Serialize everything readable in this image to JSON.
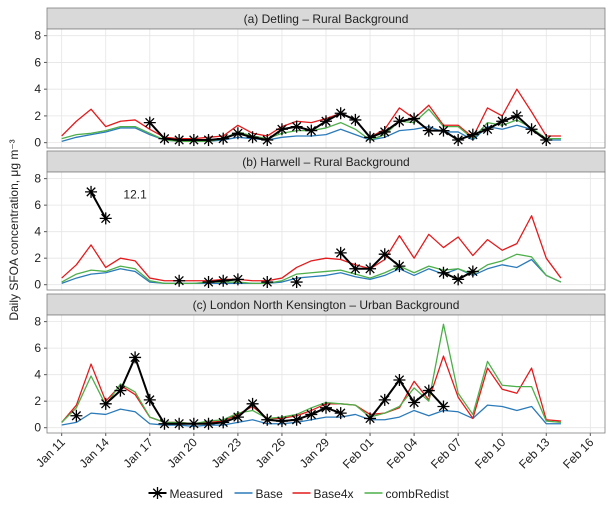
{
  "ylabel": "Daily SFOA concentration, μg m⁻³",
  "chart_data": [
    {
      "type": "line",
      "title": "(a) Detling – Rural Background",
      "x": [
        "Jan 11",
        "Jan 12",
        "Jan 13",
        "Jan 14",
        "Jan 15",
        "Jan 16",
        "Jan 17",
        "Jan 18",
        "Jan 19",
        "Jan 20",
        "Jan 21",
        "Jan 22",
        "Jan 23",
        "Jan 24",
        "Jan 25",
        "Jan 26",
        "Jan 27",
        "Jan 28",
        "Jan 29",
        "Jan 30",
        "Jan 31",
        "Feb 01",
        "Feb 02",
        "Feb 03",
        "Feb 04",
        "Feb 05",
        "Feb 06",
        "Feb 07",
        "Feb 08",
        "Feb 09",
        "Feb 10",
        "Feb 11",
        "Feb 12",
        "Feb 13",
        "Feb 14"
      ],
      "xlim": [
        "Jan 10",
        "Feb 17"
      ],
      "xticks": [
        "Jan 11",
        "Jan 14",
        "Jan 17",
        "Jan 20",
        "Jan 23",
        "Jan 26",
        "Jan 29",
        "Feb 01",
        "Feb 04",
        "Feb 07",
        "Feb 10",
        "Feb 13",
        "Feb 16"
      ],
      "ylim": [
        -0.4,
        8.5
      ],
      "yticks": [
        0,
        2,
        4,
        6,
        8
      ],
      "grid": true,
      "series": [
        {
          "name": "Base",
          "color": "#2b7bba",
          "values": [
            0.1,
            0.4,
            0.6,
            0.8,
            1.1,
            1.1,
            0.6,
            0.2,
            0.1,
            0.1,
            0.1,
            0.2,
            0.4,
            0.3,
            0.2,
            0.4,
            0.5,
            0.5,
            0.6,
            1.0,
            0.6,
            0.2,
            0.4,
            0.9,
            1.0,
            1.2,
            0.8,
            0.8,
            0.2,
            1.2,
            1.0,
            1.3,
            1.0,
            0.2,
            0.2
          ]
        },
        {
          "name": "Base4x",
          "color": "#e41a1c",
          "values": [
            0.5,
            1.6,
            2.5,
            1.2,
            1.6,
            1.7,
            1.0,
            0.4,
            0.3,
            0.3,
            0.4,
            0.5,
            1.3,
            0.7,
            0.5,
            1.2,
            1.6,
            1.5,
            1.8,
            2.2,
            1.7,
            0.4,
            1.0,
            2.6,
            1.8,
            2.8,
            1.3,
            1.3,
            0.4,
            2.6,
            2.0,
            4.0,
            2.3,
            0.5,
            0.5
          ]
        },
        {
          "name": "combRedist",
          "color": "#4daf4a",
          "values": [
            0.3,
            0.6,
            0.7,
            0.9,
            1.2,
            1.2,
            0.7,
            0.2,
            0.1,
            0.1,
            0.1,
            0.3,
            0.8,
            0.5,
            0.3,
            0.7,
            0.9,
            0.9,
            1.1,
            1.5,
            1.0,
            0.2,
            0.6,
            1.6,
            1.5,
            2.5,
            1.2,
            1.2,
            0.3,
            1.5,
            1.3,
            1.7,
            1.1,
            0.3,
            0.3
          ]
        },
        {
          "name": "Measured",
          "color": "#000000",
          "values": [
            null,
            null,
            null,
            null,
            null,
            null,
            1.5,
            0.3,
            0.2,
            0.2,
            0.2,
            0.3,
            0.7,
            0.4,
            0.2,
            1.0,
            1.2,
            0.9,
            1.6,
            2.2,
            1.7,
            0.4,
            0.8,
            1.6,
            1.8,
            0.9,
            0.9,
            0.2,
            0.6,
            1.0,
            1.6,
            2.0,
            1.0,
            0.2,
            null
          ]
        }
      ]
    },
    {
      "type": "line",
      "title": "(b) Harwell – Rural Background",
      "x": [
        "Jan 11",
        "Jan 12",
        "Jan 13",
        "Jan 14",
        "Jan 15",
        "Jan 16",
        "Jan 17",
        "Jan 18",
        "Jan 19",
        "Jan 20",
        "Jan 21",
        "Jan 22",
        "Jan 23",
        "Jan 24",
        "Jan 25",
        "Jan 26",
        "Jan 27",
        "Jan 28",
        "Jan 29",
        "Jan 30",
        "Jan 31",
        "Feb 01",
        "Feb 02",
        "Feb 03",
        "Feb 04",
        "Feb 05",
        "Feb 06",
        "Feb 07",
        "Feb 08",
        "Feb 09",
        "Feb 10",
        "Feb 11",
        "Feb 12",
        "Feb 13",
        "Feb 14"
      ],
      "xlim": [
        "Jan 10",
        "Feb 17"
      ],
      "xticks": [
        "Jan 11",
        "Jan 14",
        "Jan 17",
        "Jan 20",
        "Jan 23",
        "Jan 26",
        "Jan 29",
        "Feb 01",
        "Feb 04",
        "Feb 07",
        "Feb 10",
        "Feb 13",
        "Feb 16"
      ],
      "ylim": [
        -0.4,
        8.5
      ],
      "yticks": [
        0,
        2,
        4,
        6,
        8
      ],
      "grid": true,
      "annotations": [
        {
          "text": "12.1",
          "x": "Jan 16",
          "y": 6.8
        }
      ],
      "series": [
        {
          "name": "Base",
          "color": "#2b7bba",
          "values": [
            0.1,
            0.5,
            0.8,
            0.9,
            1.2,
            1.0,
            0.2,
            0.1,
            0.1,
            0.1,
            0.1,
            0.1,
            0.1,
            0.1,
            0.1,
            0.2,
            0.5,
            0.6,
            0.7,
            0.9,
            0.6,
            0.4,
            0.7,
            1.2,
            0.7,
            1.2,
            0.8,
            1.2,
            0.7,
            1.2,
            1.5,
            1.3,
            1.9,
            0.7,
            0.2
          ]
        },
        {
          "name": "Base4x",
          "color": "#e41a1c",
          "values": [
            0.5,
            1.5,
            3.0,
            1.3,
            2.0,
            1.8,
            0.5,
            0.3,
            0.3,
            0.3,
            0.3,
            0.4,
            0.4,
            0.3,
            0.3,
            0.5,
            1.3,
            1.8,
            2.0,
            1.9,
            1.5,
            1.2,
            1.9,
            3.7,
            2.0,
            3.8,
            2.8,
            3.6,
            2.2,
            3.4,
            2.6,
            3.1,
            5.2,
            2.0,
            0.5
          ]
        },
        {
          "name": "combRedist",
          "color": "#4daf4a",
          "values": [
            0.2,
            0.8,
            1.1,
            1.0,
            1.4,
            1.2,
            0.3,
            0.1,
            0.1,
            0.1,
            0.2,
            0.2,
            0.2,
            0.1,
            0.1,
            0.3,
            0.8,
            0.9,
            1.0,
            1.1,
            0.8,
            0.5,
            0.9,
            1.4,
            0.9,
            1.4,
            1.1,
            1.2,
            0.8,
            1.5,
            1.8,
            2.3,
            2.1,
            0.7,
            0.2
          ]
        },
        {
          "name": "Measured",
          "color": "#000000",
          "values": [
            null,
            null,
            7.0,
            5.0,
            null,
            null,
            null,
            null,
            0.3,
            null,
            0.2,
            0.3,
            0.4,
            null,
            0.2,
            null,
            0.2,
            null,
            null,
            2.4,
            1.2,
            1.2,
            2.3,
            1.4,
            null,
            null,
            0.9,
            0.4,
            1.0,
            null,
            null,
            null,
            null,
            null,
            null
          ]
        }
      ]
    },
    {
      "type": "line",
      "title": "(c) London North Kensington – Urban Background",
      "x": [
        "Jan 11",
        "Jan 12",
        "Jan 13",
        "Jan 14",
        "Jan 15",
        "Jan 16",
        "Jan 17",
        "Jan 18",
        "Jan 19",
        "Jan 20",
        "Jan 21",
        "Jan 22",
        "Jan 23",
        "Jan 24",
        "Jan 25",
        "Jan 26",
        "Jan 27",
        "Jan 28",
        "Jan 29",
        "Jan 30",
        "Jan 31",
        "Feb 01",
        "Feb 02",
        "Feb 03",
        "Feb 04",
        "Feb 05",
        "Feb 06",
        "Feb 07",
        "Feb 08",
        "Feb 09",
        "Feb 10",
        "Feb 11",
        "Feb 12",
        "Feb 13",
        "Feb 14"
      ],
      "xlim": [
        "Jan 10",
        "Feb 17"
      ],
      "xticks": [
        "Jan 11",
        "Jan 14",
        "Jan 17",
        "Jan 20",
        "Jan 23",
        "Jan 26",
        "Jan 29",
        "Feb 01",
        "Feb 04",
        "Feb 07",
        "Feb 10",
        "Feb 13",
        "Feb 16"
      ],
      "ylim": [
        -0.4,
        8.5
      ],
      "yticks": [
        0,
        2,
        4,
        6,
        8
      ],
      "grid": true,
      "series": [
        {
          "name": "Base",
          "color": "#2b7bba",
          "values": [
            0.2,
            0.4,
            1.1,
            1.0,
            1.4,
            1.2,
            0.3,
            0.2,
            0.2,
            0.1,
            0.2,
            0.2,
            0.4,
            0.6,
            0.3,
            0.3,
            0.4,
            0.6,
            0.8,
            0.8,
            1.0,
            0.6,
            0.6,
            0.8,
            1.3,
            0.9,
            1.3,
            1.2,
            0.7,
            1.7,
            1.6,
            1.3,
            1.6,
            0.3,
            0.3
          ]
        },
        {
          "name": "Base4x",
          "color": "#e41a1c",
          "values": [
            0.4,
            1.7,
            4.8,
            2.0,
            3.2,
            2.5,
            0.8,
            0.4,
            0.4,
            0.3,
            0.4,
            0.5,
            1.0,
            1.6,
            0.7,
            0.7,
            0.9,
            1.3,
            1.8,
            1.8,
            1.7,
            1.0,
            1.1,
            1.5,
            3.5,
            2.1,
            5.4,
            2.3,
            0.7,
            4.5,
            2.9,
            2.6,
            4.5,
            0.6,
            0.5
          ]
        },
        {
          "name": "combRedist",
          "color": "#4daf4a",
          "values": [
            0.4,
            1.5,
            3.9,
            1.7,
            3.3,
            2.7,
            0.8,
            0.4,
            0.4,
            0.3,
            0.5,
            0.6,
            1.1,
            1.3,
            0.7,
            0.8,
            1.0,
            1.5,
            1.9,
            1.8,
            1.7,
            0.8,
            1.1,
            1.6,
            3.0,
            2.0,
            7.8,
            2.6,
            1.0,
            5.0,
            3.2,
            3.1,
            3.1,
            0.5,
            0.4
          ]
        },
        {
          "name": "Measured",
          "color": "#000000",
          "values": [
            null,
            0.9,
            null,
            1.8,
            2.8,
            5.3,
            2.1,
            0.3,
            0.3,
            0.3,
            0.3,
            0.4,
            0.8,
            1.8,
            0.6,
            0.5,
            0.6,
            1.0,
            1.5,
            1.1,
            null,
            0.7,
            2.1,
            3.6,
            1.9,
            2.8,
            1.6,
            null,
            null,
            null,
            null,
            null,
            null,
            null,
            null
          ]
        }
      ]
    }
  ],
  "legend_order": [
    3,
    0,
    1,
    2
  ]
}
